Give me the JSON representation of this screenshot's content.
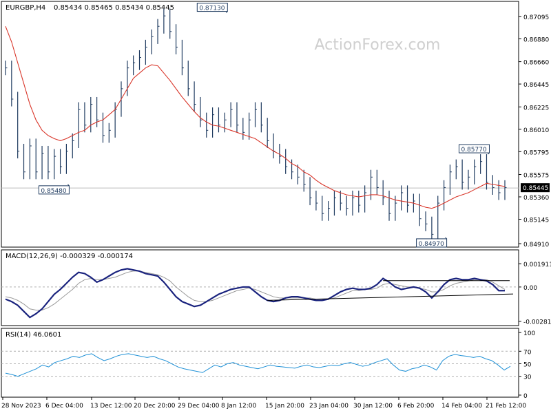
{
  "header": {
    "symbol": "EURGBP,H4",
    "ohlc": "0.85434 0.85465 0.85434 0.85445"
  },
  "watermark": "ActionForex.com",
  "chart_data": [
    {
      "type": "bar",
      "panel": "price",
      "title": "EURGBP,H4 0.85434 0.85465 0.85434 0.85445",
      "x_tick_labels": [
        "28 Nov 2023",
        "6 Dec 04:00",
        "13 Dec 12:00",
        "20 Dec 20:00",
        "29 Dec 04:00",
        "8 Jan 12:00",
        "15 Jan 20:00",
        "23 Jan 04:00",
        "30 Jan 12:00",
        "6 Feb 20:00",
        "14 Feb 04:00",
        "21 Feb 12:00"
      ],
      "y_tick_labels": [
        "0.87095",
        "0.86880",
        "0.86660",
        "0.86445",
        "0.86225",
        "0.86010",
        "0.85795",
        "0.85575",
        "0.85360",
        "0.85145",
        "0.84910"
      ],
      "ylim": [
        0.8491,
        0.872
      ],
      "current_price_label": "0.85445",
      "current_price": 0.85445,
      "annotations": [
        {
          "label": "0.87130",
          "value": 0.8713
        },
        {
          "label": "0.85480",
          "value": 0.8548
        },
        {
          "label": "0.85770",
          "value": 0.8577
        },
        {
          "label": "0.84970",
          "value": 0.8497
        }
      ],
      "series": [
        {
          "kind": "close",
          "values": [
            0.866,
            0.863,
            0.858,
            0.856,
            0.8585,
            0.856,
            0.8578,
            0.856,
            0.8575,
            0.8565,
            0.858,
            0.859,
            0.862,
            0.8605,
            0.8625,
            0.861,
            0.8595,
            0.86,
            0.862,
            0.864,
            0.866,
            0.8665,
            0.867,
            0.868,
            0.869,
            0.87,
            0.871,
            0.8695,
            0.868,
            0.866,
            0.864,
            0.8625,
            0.861,
            0.86,
            0.8615,
            0.8605,
            0.861,
            0.862,
            0.8605,
            0.8598,
            0.861,
            0.862,
            0.8605,
            0.859,
            0.858,
            0.8575,
            0.8565,
            0.856,
            0.8555,
            0.8548,
            0.8535,
            0.853,
            0.852,
            0.8525,
            0.8535,
            0.853,
            0.8525,
            0.8535,
            0.8528,
            0.854,
            0.8555,
            0.8545,
            0.8535,
            0.852,
            0.853,
            0.854,
            0.8528,
            0.8532,
            0.8515,
            0.851,
            0.85,
            0.853,
            0.8545,
            0.856,
            0.8565,
            0.855,
            0.8555,
            0.8565,
            0.857,
            0.855,
            0.8545,
            0.854,
            0.8545
          ]
        },
        {
          "kind": "moving-average",
          "values": [
            0.87,
            0.8685,
            0.8665,
            0.8645,
            0.8625,
            0.861,
            0.86,
            0.8595,
            0.8592,
            0.859,
            0.8592,
            0.8595,
            0.8598,
            0.86,
            0.8605,
            0.8608,
            0.861,
            0.8615,
            0.862,
            0.863,
            0.864,
            0.865,
            0.8655,
            0.866,
            0.8663,
            0.8662,
            0.8655,
            0.8648,
            0.864,
            0.8632,
            0.8625,
            0.8618,
            0.8612,
            0.8608,
            0.8605,
            0.8604,
            0.8602,
            0.86,
            0.8598,
            0.8596,
            0.8594,
            0.8592,
            0.8588,
            0.8584,
            0.858,
            0.8577,
            0.8573,
            0.8568,
            0.8565,
            0.856,
            0.8557,
            0.8552,
            0.8548,
            0.8545,
            0.8542,
            0.854,
            0.8538,
            0.8537,
            0.8536,
            0.8537,
            0.8538,
            0.8538,
            0.8537,
            0.8535,
            0.8533,
            0.8532,
            0.8531,
            0.853,
            0.8528,
            0.8526,
            0.8525,
            0.8527,
            0.853,
            0.8533,
            0.8536,
            0.8538,
            0.854,
            0.8543,
            0.8546,
            0.8549,
            0.8548,
            0.8547,
            0.8546
          ]
        }
      ]
    },
    {
      "type": "line",
      "panel": "macd",
      "title": "MACD(12,26,9) -0.000329 -0.000174",
      "y_tick_labels": [
        "0.001911",
        "0.00",
        "-0.002816"
      ],
      "ylim": [
        -0.003,
        0.0022
      ],
      "series": [
        {
          "kind": "macd",
          "values": [
            -0.001,
            -0.0012,
            -0.0015,
            -0.002,
            -0.0025,
            -0.0022,
            -0.0018,
            -0.0012,
            -0.0006,
            -0.0002,
            0.0003,
            0.0008,
            0.0012,
            0.0011,
            0.0008,
            0.0004,
            0.0006,
            0.0009,
            0.0012,
            0.0014,
            0.0015,
            0.0014,
            0.0013,
            0.0011,
            0.001,
            0.0009,
            0.0004,
            -0.0002,
            -0.0008,
            -0.0012,
            -0.0014,
            -0.0016,
            -0.0015,
            -0.0012,
            -0.0009,
            -0.0006,
            -0.0004,
            -0.0002,
            -0.0001,
            0.0,
            0.0,
            -0.0004,
            -0.0008,
            -0.0011,
            -0.0012,
            -0.0011,
            -0.0009,
            -0.0008,
            -0.0008,
            -0.0009,
            -0.001,
            -0.0011,
            -0.0011,
            -0.001,
            -0.0007,
            -0.0004,
            -0.0002,
            -0.0001,
            -0.0002,
            -0.0002,
            -0.0001,
            0.0002,
            0.0007,
            0.0004,
            0.0,
            -0.0002,
            -0.0001,
            0.0,
            -0.0001,
            -0.0004,
            -0.0009,
            -0.0004,
            0.0002,
            0.0006,
            0.0007,
            0.0006,
            0.0006,
            0.0007,
            0.0006,
            0.0005,
            0.0002,
            -0.0003,
            -0.0003
          ]
        },
        {
          "kind": "signal",
          "values": [
            -0.0008,
            -0.0009,
            -0.0011,
            -0.0014,
            -0.0018,
            -0.0019,
            -0.0019,
            -0.0017,
            -0.0014,
            -0.001,
            -0.0006,
            -0.0002,
            0.0003,
            0.0006,
            0.0007,
            0.0006,
            0.0006,
            0.0007,
            0.0008,
            0.001,
            0.0012,
            0.0013,
            0.0013,
            0.0012,
            0.0011,
            0.001,
            0.0008,
            0.0005,
            0.0,
            -0.0004,
            -0.0008,
            -0.0011,
            -0.0012,
            -0.0012,
            -0.0011,
            -0.0009,
            -0.0007,
            -0.0005,
            -0.0003,
            -0.0002,
            -0.0001,
            -0.0002,
            -0.0004,
            -0.0006,
            -0.0008,
            -0.0009,
            -0.0009,
            -0.0009,
            -0.0009,
            -0.0009,
            -0.0009,
            -0.001,
            -0.001,
            -0.001,
            -0.0009,
            -0.0007,
            -0.0005,
            -0.0003,
            -0.0003,
            -0.0002,
            -0.0002,
            -0.0001,
            0.0002,
            0.0003,
            0.0002,
            0.0001,
            0.0,
            0.0,
            -0.0001,
            -0.0002,
            -0.0004,
            -0.0004,
            -0.0002,
            0.0001,
            0.0003,
            0.0004,
            0.0005,
            0.0006,
            0.0006,
            0.0006,
            0.0004,
            0.0001,
            -0.0002
          ]
        }
      ]
    },
    {
      "type": "line",
      "panel": "rsi",
      "title": "RSI(14) 46.0601",
      "y_tick_labels": [
        "100",
        "70",
        "50",
        "30",
        "0"
      ],
      "ylim": [
        0,
        100
      ],
      "series": [
        {
          "kind": "rsi",
          "values": [
            35,
            33,
            30,
            34,
            38,
            42,
            48,
            45,
            52,
            55,
            58,
            62,
            60,
            64,
            66,
            60,
            55,
            58,
            62,
            65,
            66,
            64,
            62,
            60,
            62,
            58,
            55,
            50,
            45,
            42,
            40,
            38,
            36,
            42,
            48,
            45,
            50,
            52,
            48,
            46,
            44,
            42,
            45,
            48,
            46,
            45,
            44,
            43,
            46,
            48,
            45,
            44,
            46,
            48,
            47,
            50,
            52,
            49,
            46,
            48,
            52,
            55,
            58,
            48,
            40,
            38,
            42,
            44,
            48,
            45,
            40,
            55,
            62,
            65,
            63,
            62,
            60,
            62,
            58,
            55,
            48,
            40,
            46
          ]
        }
      ]
    }
  ]
}
